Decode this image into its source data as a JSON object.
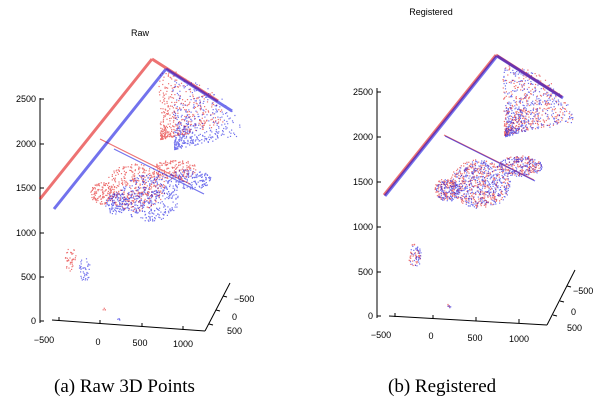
{
  "chart_data": [
    {
      "type": "scatter",
      "title": "Raw",
      "caption": "(a) Raw 3D Points",
      "z_ticks": [
        "0",
        "500",
        "1000",
        "1500",
        "2000",
        "2500"
      ],
      "x_ticks": [
        "−500",
        "0",
        "500",
        "1000"
      ],
      "y_ticks": [
        "−500",
        "0",
        "500"
      ],
      "zlim": [
        0,
        2700
      ],
      "series": [
        {
          "color": "#e00000",
          "offset": [
            -6,
            -4
          ]
        },
        {
          "color": "#0000e0",
          "offset": [
            8,
            6
          ]
        }
      ]
    },
    {
      "type": "scatter",
      "title": "Registered",
      "caption": "(b) Registered",
      "z_ticks": [
        "0",
        "500",
        "1000",
        "1500",
        "2000",
        "2500"
      ],
      "x_ticks": [
        "−500",
        "0",
        "500",
        "1000"
      ],
      "y_ticks": [
        "−500",
        "0",
        "500"
      ],
      "zlim": [
        0,
        2700
      ],
      "series": [
        {
          "color": "#e00000",
          "offset": [
            0,
            0
          ]
        },
        {
          "color": "#0000e0",
          "offset": [
            1,
            1
          ]
        }
      ]
    }
  ]
}
